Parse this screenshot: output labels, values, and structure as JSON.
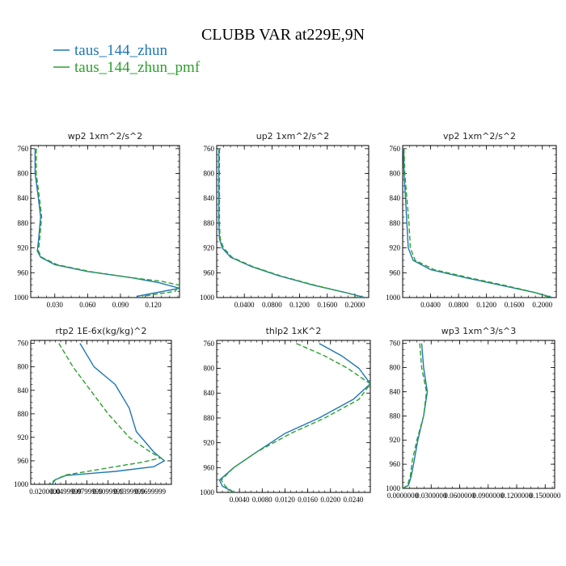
{
  "figure": {
    "title": "CLUBB VAR at229E,9N",
    "legend": [
      {
        "label": "taus_144_zhun",
        "color": "#1f77b4"
      },
      {
        "label": "taus_144_zhun_pmf",
        "color": "#2ca02c"
      }
    ]
  },
  "chart_data": [
    {
      "type": "line",
      "title": "wp2 1xm^2/s^2",
      "xlim": [
        0.008,
        0.144
      ],
      "ylim": [
        1000,
        755
      ],
      "yticks": [
        "760",
        "800",
        "840",
        "880",
        "920",
        "960",
        "1000"
      ],
      "xticks": [
        "0.030",
        "0.060",
        "0.090",
        "0.120"
      ],
      "xtick_values": [
        0.03,
        0.06,
        0.09,
        0.12
      ],
      "series": [
        {
          "name": "taus_144_zhun",
          "color": "#1f77b4",
          "dash": "none",
          "points": [
            [
              0.012,
              760
            ],
            [
              0.012,
              800
            ],
            [
              0.015,
              840
            ],
            [
              0.017,
              870
            ],
            [
              0.015,
              910
            ],
            [
              0.014,
              925
            ],
            [
              0.017,
              935
            ],
            [
              0.03,
              947
            ],
            [
              0.06,
              958
            ],
            [
              0.1,
              968
            ],
            [
              0.125,
              976
            ],
            [
              0.144,
              985
            ],
            [
              0.105,
              998
            ]
          ]
        },
        {
          "name": "taus_144_zhun_pmf",
          "color": "#2ca02c",
          "dash": "6,3",
          "points": [
            [
              0.013,
              760
            ],
            [
              0.013,
              800
            ],
            [
              0.016,
              840
            ],
            [
              0.018,
              870
            ],
            [
              0.016,
              910
            ],
            [
              0.015,
              925
            ],
            [
              0.018,
              935
            ],
            [
              0.032,
              947
            ],
            [
              0.062,
              958
            ],
            [
              0.1,
              968
            ],
            [
              0.128,
              974
            ],
            [
              0.144,
              980
            ],
            [
              0.14,
              990
            ],
            [
              0.11,
              998
            ]
          ]
        }
      ]
    },
    {
      "type": "line",
      "title": "up2 1xm^2/s^2",
      "xlim": [
        0.0,
        0.22
      ],
      "ylim": [
        1000,
        755
      ],
      "yticks": [
        "760",
        "800",
        "840",
        "880",
        "920",
        "960",
        "1000"
      ],
      "xticks": [
        "0.0400",
        "0.0800",
        "0.1200",
        "0.1600",
        "0.2000"
      ],
      "xtick_values": [
        0.04,
        0.08,
        0.12,
        0.16,
        0.2
      ],
      "series": [
        {
          "name": "taus_144_zhun",
          "color": "#1f77b4",
          "dash": "none",
          "points": [
            [
              0.003,
              760
            ],
            [
              0.003,
              800
            ],
            [
              0.003,
              880
            ],
            [
              0.004,
              905
            ],
            [
              0.008,
              920
            ],
            [
              0.02,
              935
            ],
            [
              0.05,
              950
            ],
            [
              0.09,
              965
            ],
            [
              0.14,
              980
            ],
            [
              0.19,
              993
            ],
            [
              0.215,
              1000
            ]
          ]
        },
        {
          "name": "taus_144_zhun_pmf",
          "color": "#2ca02c",
          "dash": "6,3",
          "points": [
            [
              0.004,
              760
            ],
            [
              0.004,
              800
            ],
            [
              0.004,
              880
            ],
            [
              0.005,
              905
            ],
            [
              0.01,
              920
            ],
            [
              0.022,
              935
            ],
            [
              0.052,
              950
            ],
            [
              0.092,
              965
            ],
            [
              0.142,
              980
            ],
            [
              0.19,
              993
            ],
            [
              0.212,
              1000
            ]
          ]
        }
      ]
    },
    {
      "type": "line",
      "title": "vp2 1xm^2/s^2",
      "xlim": [
        0.0,
        0.22
      ],
      "ylim": [
        1000,
        755
      ],
      "yticks": [
        "760",
        "800",
        "840",
        "880",
        "920",
        "960",
        "1000"
      ],
      "xticks": [
        "0.0400",
        "0.0800",
        "0.1200",
        "0.1600",
        "0.2000"
      ],
      "xtick_values": [
        0.04,
        0.08,
        0.12,
        0.16,
        0.2
      ],
      "series": [
        {
          "name": "taus_144_zhun",
          "color": "#1f77b4",
          "dash": "none",
          "points": [
            [
              0.001,
              760
            ],
            [
              0.002,
              800
            ],
            [
              0.004,
              840
            ],
            [
              0.006,
              880
            ],
            [
              0.008,
              920
            ],
            [
              0.015,
              940
            ],
            [
              0.04,
              955
            ],
            [
              0.09,
              968
            ],
            [
              0.14,
              980
            ],
            [
              0.19,
              992
            ],
            [
              0.215,
              1000
            ]
          ]
        },
        {
          "name": "taus_144_zhun_pmf",
          "color": "#2ca02c",
          "dash": "6,3",
          "points": [
            [
              0.002,
              760
            ],
            [
              0.003,
              800
            ],
            [
              0.006,
              840
            ],
            [
              0.009,
              880
            ],
            [
              0.011,
              920
            ],
            [
              0.018,
              940
            ],
            [
              0.045,
              955
            ],
            [
              0.095,
              968
            ],
            [
              0.145,
              980
            ],
            [
              0.19,
              992
            ],
            [
              0.212,
              1000
            ]
          ]
        }
      ]
    },
    {
      "type": "line",
      "title": "rtp2 1E-6x(kg/kg)^2",
      "xlim": [
        0.0,
        0.2
      ],
      "ylim": [
        1000,
        755
      ],
      "yticks": [
        "760",
        "800",
        "840",
        "880",
        "920",
        "960",
        "1000"
      ],
      "xticks": [
        "0.0200000",
        "0.0499999",
        "0.0799999",
        "0.1099999",
        "0.1399999",
        "0.1699999"
      ],
      "xtick_values": [
        0.02,
        0.05,
        0.08,
        0.11,
        0.14,
        0.17
      ],
      "series": [
        {
          "name": "taus_144_zhun",
          "color": "#1f77b4",
          "dash": "none",
          "points": [
            [
              0.07,
              760
            ],
            [
              0.09,
              800
            ],
            [
              0.12,
              830
            ],
            [
              0.14,
              870
            ],
            [
              0.15,
              910
            ],
            [
              0.175,
              945
            ],
            [
              0.19,
              960
            ],
            [
              0.175,
              970
            ],
            [
              0.12,
              978
            ],
            [
              0.05,
              985
            ],
            [
              0.035,
              992
            ],
            [
              0.03,
              1000
            ]
          ]
        },
        {
          "name": "taus_144_zhun_pmf",
          "color": "#2ca02c",
          "dash": "6,3",
          "points": [
            [
              0.04,
              760
            ],
            [
              0.06,
              800
            ],
            [
              0.085,
              840
            ],
            [
              0.11,
              880
            ],
            [
              0.14,
              920
            ],
            [
              0.17,
              945
            ],
            [
              0.185,
              955
            ],
            [
              0.16,
              962
            ],
            [
              0.11,
              972
            ],
            [
              0.05,
              984
            ],
            [
              0.035,
              992
            ],
            [
              0.025,
              1000
            ]
          ]
        }
      ]
    },
    {
      "type": "line",
      "title": "thlp2 1xK^2",
      "xlim": [
        0.0,
        0.027
      ],
      "ylim": [
        1000,
        755
      ],
      "yticks": [
        "760",
        "800",
        "840",
        "880",
        "920",
        "960",
        "1000"
      ],
      "xticks": [
        "0.0040",
        "0.0080",
        "0.0120",
        "0.0160",
        "0.0200",
        "0.0240"
      ],
      "xtick_values": [
        0.004,
        0.008,
        0.012,
        0.016,
        0.02,
        0.024
      ],
      "series": [
        {
          "name": "taus_144_zhun",
          "color": "#1f77b4",
          "dash": "none",
          "points": [
            [
              0.018,
              760
            ],
            [
              0.022,
              780
            ],
            [
              0.025,
              800
            ],
            [
              0.027,
              825
            ],
            [
              0.024,
              850
            ],
            [
              0.018,
              880
            ],
            [
              0.012,
              905
            ],
            [
              0.007,
              935
            ],
            [
              0.003,
              960
            ],
            [
              0.0005,
              980
            ],
            [
              0.001,
              990
            ],
            [
              0.003,
              1000
            ]
          ]
        },
        {
          "name": "taus_144_zhun_pmf",
          "color": "#2ca02c",
          "dash": "6,3",
          "points": [
            [
              0.014,
              760
            ],
            [
              0.019,
              780
            ],
            [
              0.023,
              800
            ],
            [
              0.027,
              825
            ],
            [
              0.025,
              850
            ],
            [
              0.019,
              880
            ],
            [
              0.013,
              905
            ],
            [
              0.007,
              935
            ],
            [
              0.003,
              960
            ],
            [
              0.0008,
              980
            ],
            [
              0.0015,
              990
            ],
            [
              0.003,
              1000
            ]
          ]
        }
      ]
    },
    {
      "type": "line",
      "title": "wp3 1xm^3/s^3",
      "xlim": [
        0.0,
        0.16
      ],
      "ylim": [
        1000,
        755
      ],
      "yticks": [
        "760",
        "800",
        "840",
        "880",
        "920",
        "960",
        "1000"
      ],
      "xticks": [
        "0.0000000",
        "0.0300000",
        "0.0600000",
        "0.0900000",
        "0.1200000",
        "0.1500000"
      ],
      "xtick_values": [
        0.0,
        0.03,
        0.06,
        0.09,
        0.12,
        0.15
      ],
      "series": [
        {
          "name": "taus_144_zhun",
          "color": "#1f77b4",
          "dash": "none",
          "points": [
            [
              0.02,
              760
            ],
            [
              0.022,
              800
            ],
            [
              0.026,
              840
            ],
            [
              0.022,
              880
            ],
            [
              0.016,
              920
            ],
            [
              0.012,
              955
            ],
            [
              0.009,
              980
            ],
            [
              0.006,
              995
            ],
            [
              0.0,
              1000
            ]
          ]
        },
        {
          "name": "taus_144_zhun_pmf",
          "color": "#2ca02c",
          "dash": "6,3",
          "points": [
            [
              0.018,
              760
            ],
            [
              0.02,
              800
            ],
            [
              0.025,
              840
            ],
            [
              0.022,
              880
            ],
            [
              0.015,
              920
            ],
            [
              0.01,
              955
            ],
            [
              0.008,
              980
            ],
            [
              0.005,
              995
            ],
            [
              0.0,
              1000
            ]
          ]
        }
      ]
    }
  ]
}
